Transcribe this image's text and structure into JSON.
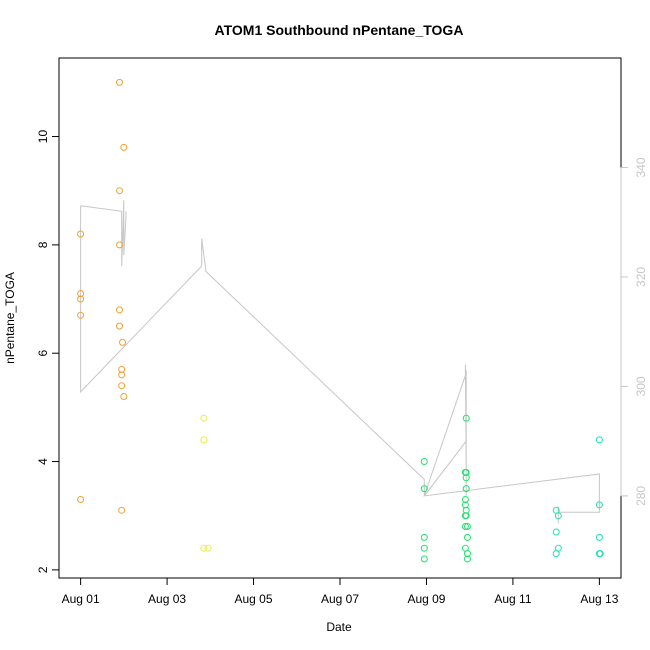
{
  "chart_data": {
    "type": "scatter",
    "title": "ATOM1 Southbound nPentane_TOGA",
    "xlabel": "Date",
    "ylabel": "nPentane_TOGA",
    "x_ticks": [
      "Aug 01",
      "Aug 03",
      "Aug 05",
      "Aug 07",
      "Aug 09",
      "Aug 11",
      "Aug 13"
    ],
    "x_tick_values": [
      0,
      2,
      4,
      6,
      8,
      10,
      12
    ],
    "xlim": [
      -0.5,
      12.5
    ],
    "y_ticks": [
      "2",
      "4",
      "6",
      "8",
      "10"
    ],
    "y_tick_values": [
      2,
      4,
      6,
      8,
      10
    ],
    "ylim": [
      1.85,
      11.45
    ],
    "y2_ticks": [
      "280",
      "300",
      "320",
      "340"
    ],
    "y2_tick_values": [
      280,
      300,
      320,
      340
    ],
    "y2lim": [
      265,
      360
    ],
    "grid": false,
    "colors": {
      "aug01_02": "#f5a030",
      "aug03_04": "#e8f040",
      "aug08_09": "#1de36a",
      "aug12_13": "#1de3b0",
      "track_line": "#c6c6c6"
    },
    "series": [
      {
        "color": "#f5a030",
        "points": [
          [
            0.0,
            8.2
          ],
          [
            0.0,
            7.1
          ],
          [
            0.0,
            7.0
          ],
          [
            0.0,
            6.7
          ],
          [
            0.0,
            3.3
          ],
          [
            0.9,
            11.0
          ],
          [
            0.9,
            9.0
          ],
          [
            0.9,
            8.0
          ],
          [
            0.9,
            6.8
          ],
          [
            0.9,
            6.5
          ],
          [
            0.95,
            5.7
          ],
          [
            0.95,
            5.6
          ],
          [
            0.95,
            5.4
          ],
          [
            0.95,
            3.1
          ],
          [
            1.0,
            9.8
          ],
          [
            0.97,
            6.2
          ],
          [
            1.0,
            5.2
          ]
        ]
      },
      {
        "color": "#e8f040",
        "points": [
          [
            2.85,
            4.8
          ],
          [
            2.85,
            4.4
          ],
          [
            2.85,
            2.4
          ],
          [
            2.95,
            2.4
          ]
        ]
      },
      {
        "color": "#1de36a",
        "points": [
          [
            7.95,
            4.0
          ],
          [
            7.95,
            3.5
          ],
          [
            7.95,
            2.6
          ],
          [
            7.95,
            2.4
          ],
          [
            7.95,
            2.2
          ],
          [
            8.9,
            3.8
          ],
          [
            8.9,
            3.3
          ],
          [
            8.9,
            3.2
          ],
          [
            8.9,
            3.0
          ],
          [
            8.9,
            2.8
          ],
          [
            8.9,
            2.4
          ],
          [
            8.92,
            4.8
          ],
          [
            8.92,
            3.8
          ],
          [
            8.92,
            3.7
          ],
          [
            8.92,
            3.5
          ],
          [
            8.92,
            3.1
          ],
          [
            8.92,
            3.0
          ],
          [
            8.95,
            2.8
          ],
          [
            8.95,
            2.6
          ],
          [
            8.95,
            2.3
          ],
          [
            8.95,
            2.2
          ]
        ]
      },
      {
        "color": "#1de3b0",
        "points": [
          [
            11.0,
            3.1
          ],
          [
            11.05,
            3.0
          ],
          [
            11.0,
            2.7
          ],
          [
            11.05,
            2.4
          ],
          [
            11.0,
            2.3
          ],
          [
            12.0,
            4.4
          ],
          [
            12.0,
            3.2
          ],
          [
            12.0,
            2.6
          ],
          [
            12.0,
            2.3
          ],
          [
            12.02,
            2.3
          ]
        ]
      }
    ],
    "track_line": [
      [
        0.0,
        333
      ],
      [
        0.0,
        299
      ],
      [
        2.8,
        322
      ],
      [
        2.8,
        327
      ],
      [
        2.9,
        321
      ],
      [
        7.95,
        283
      ],
      [
        7.95,
        280
      ],
      [
        8.9,
        302
      ],
      [
        8.9,
        304
      ],
      [
        8.92,
        285
      ],
      [
        8.92,
        280
      ],
      [
        8.92,
        303
      ],
      [
        8.92,
        290
      ],
      [
        7.95,
        280
      ],
      [
        12.0,
        284
      ],
      [
        12.0,
        277
      ],
      [
        11.05,
        277
      ],
      [
        11.05,
        275
      ],
      [
        11.05,
        278
      ]
    ],
    "track_line_extra": [
      [
        0.0,
        333
      ],
      [
        0.95,
        332
      ],
      [
        0.95,
        326
      ],
      [
        0.95,
        322
      ],
      [
        1.0,
        334
      ],
      [
        1.0,
        324
      ],
      [
        1.05,
        331
      ],
      [
        1.05,
        332
      ]
    ]
  }
}
